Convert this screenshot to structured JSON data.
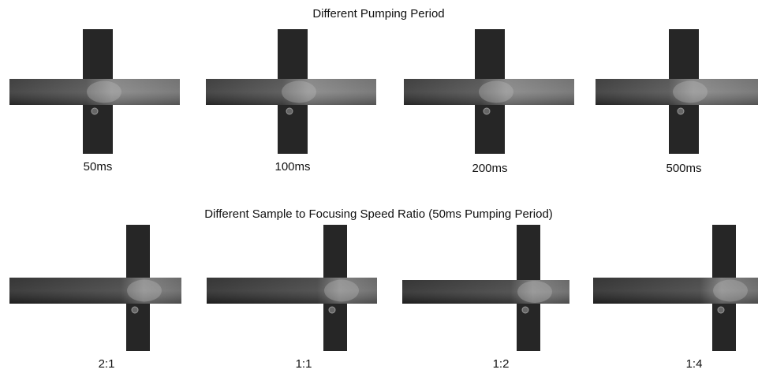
{
  "rows": [
    {
      "title": "Different Pumping Period",
      "panels": [
        {
          "label": "50ms"
        },
        {
          "label": "100ms"
        },
        {
          "label": "200ms"
        },
        {
          "label": "500ms"
        }
      ]
    },
    {
      "title": "Different Sample to Focusing Speed Ratio (50ms Pumping Period)",
      "panels": [
        {
          "label": "2:1"
        },
        {
          "label": "1:1"
        },
        {
          "label": "1:2"
        },
        {
          "label": "1:4"
        }
      ]
    }
  ]
}
